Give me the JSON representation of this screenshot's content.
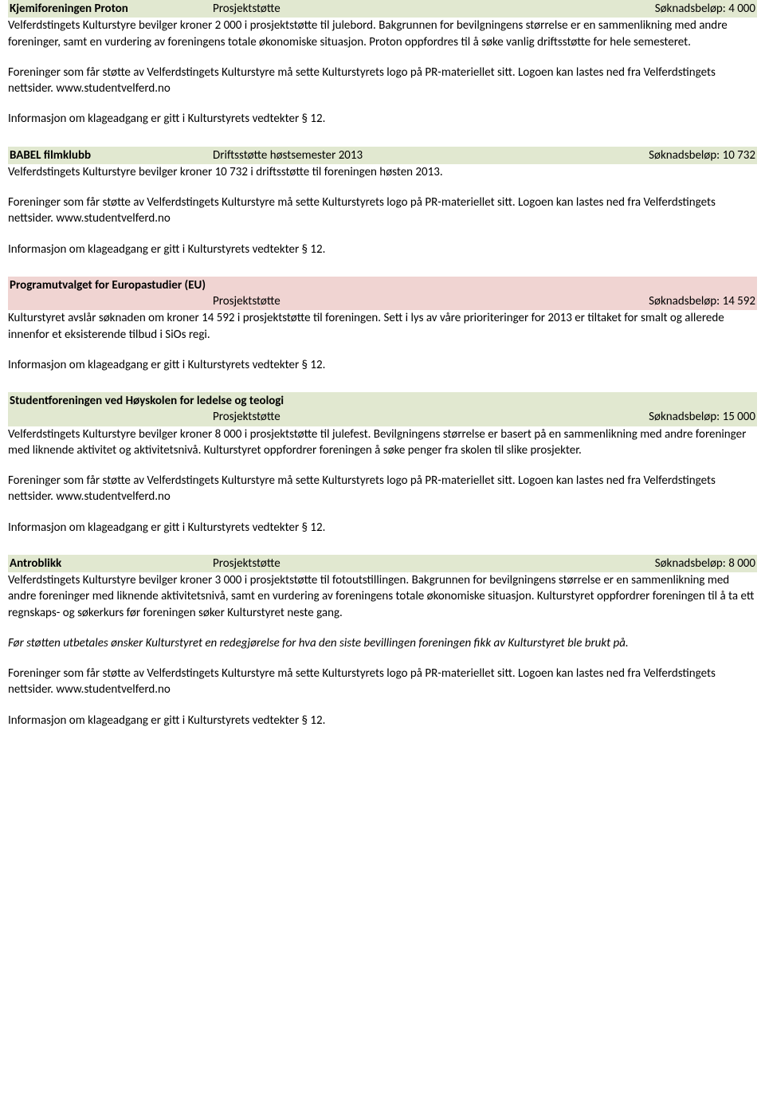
{
  "entries": [
    {
      "title": "Kjemiforeningen Proton",
      "type": "Prosjektstøtte",
      "amount_label": "Søknadsbeløp: 4 000",
      "rejected": false,
      "two_line": false,
      "paragraphs": [
        {
          "text": "Velferdstingets Kulturstyre bevilger kroner 2 000 i prosjektstøtte til julebord. Bakgrunnen for bevilgningens størrelse er en sammenlikning med andre foreninger, samt en vurdering av foreningens totale økonomiske situasjon. Proton oppfordres til å søke vanlig driftsstøtte for hele semesteret.",
          "italic": false
        },
        {
          "text": "Foreninger som får støtte av Velferdstingets Kulturstyre må sette Kulturstyrets logo på PR-materiellet sitt. Logoen kan lastes ned fra Velferdstingets nettsider. www.studentvelferd.no",
          "italic": false
        },
        {
          "text": "Informasjon om klageadgang er gitt i Kulturstyrets vedtekter § 12.",
          "italic": false
        }
      ]
    },
    {
      "title": "BABEL filmklubb",
      "type": "Driftsstøtte høstsemester 2013",
      "amount_label": "Søknadsbeløp: 10 732",
      "rejected": false,
      "two_line": false,
      "paragraphs": [
        {
          "text": "Velferdstingets Kulturstyre bevilger kroner 10 732 i driftsstøtte til foreningen høsten 2013.",
          "italic": false
        },
        {
          "text": "Foreninger som får støtte av Velferdstingets Kulturstyre må sette Kulturstyrets logo på PR-materiellet sitt. Logoen kan lastes ned fra Velferdstingets nettsider. www.studentvelferd.no",
          "italic": false
        },
        {
          "text": "Informasjon om klageadgang er gitt i Kulturstyrets vedtekter § 12.",
          "italic": false
        }
      ]
    },
    {
      "title": "Programutvalget for Europastudier (EU)",
      "type": "Prosjektstøtte",
      "amount_label": "Søknadsbeløp: 14 592",
      "rejected": true,
      "two_line": true,
      "paragraphs": [
        {
          "text": "Kulturstyret avslår søknaden om kroner 14 592 i prosjektstøtte til foreningen. Sett i lys av våre prioriteringer for 2013 er tiltaket for smalt og allerede innenfor et eksisterende tilbud i SiOs regi.",
          "italic": false
        },
        {
          "text": "Informasjon om klageadgang er gitt i Kulturstyrets vedtekter § 12.",
          "italic": false
        }
      ]
    },
    {
      "title": "Studentforeningen ved Høyskolen for ledelse og teologi",
      "type": "Prosjektstøtte",
      "amount_label": "Søknadsbeløp: 15 000",
      "rejected": false,
      "two_line": true,
      "paragraphs": [
        {
          "text": "Velferdstingets Kulturstyre bevilger kroner 8 000 i prosjektstøtte til julefest. Bevilgningens størrelse er basert på en sammenlikning med andre foreninger med liknende aktivitet og aktivitetsnivå. Kulturstyret oppfordrer foreningen å søke penger fra skolen til slike prosjekter.",
          "italic": false
        },
        {
          "text": "Foreninger som får støtte av Velferdstingets Kulturstyre må sette Kulturstyrets logo på PR-materiellet sitt. Logoen kan lastes ned fra Velferdstingets nettsider. www.studentvelferd.no",
          "italic": false
        },
        {
          "text": "Informasjon om klageadgang er gitt i Kulturstyrets vedtekter § 12.",
          "italic": false
        }
      ]
    },
    {
      "title": "Antroblikk",
      "type": "Prosjektstøtte",
      "amount_label": "Søknadsbeløp: 8 000",
      "rejected": false,
      "two_line": false,
      "paragraphs": [
        {
          "text": "Velferdstingets Kulturstyre bevilger kroner 3 000 i prosjektstøtte til fotoutstillingen. Bakgrunnen for bevilgningens størrelse er en sammenlikning med andre foreninger med liknende aktivitetsnivå, samt en vurdering av foreningens totale økonomiske situasjon. Kulturstyret oppfordrer foreningen til å ta ett regnskaps- og søkerkurs før foreningen søker Kulturstyret neste gang.",
          "italic": false
        },
        {
          "text": "Før støtten utbetales ønsker Kulturstyret en redegjørelse for hva den siste bevillingen foreningen fikk av Kulturstyret ble brukt på.",
          "italic": true
        },
        {
          "text": "Foreninger som får støtte av Velferdstingets Kulturstyre må sette Kulturstyrets logo på PR-materiellet sitt. Logoen kan lastes ned fra Velferdstingets nettsider. www.studentvelferd.no",
          "italic": false
        },
        {
          "text": "Informasjon om klageadgang er gitt i Kulturstyrets vedtekter § 12.",
          "italic": false
        }
      ]
    }
  ]
}
